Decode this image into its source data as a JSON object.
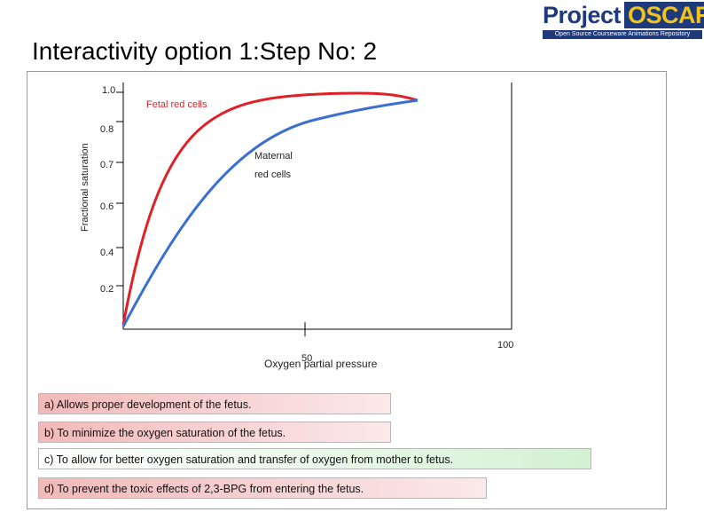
{
  "title": "Interactivity option 1:Step No:  2",
  "logo": {
    "word1": "Project",
    "word2": "OSCAR",
    "tagline": "Open Source Courseware Animations Repository"
  },
  "chart_data": {
    "type": "line",
    "ylabel": "Fractional saturation",
    "xlabel": "Oxygen partial pressure",
    "y_ticks": [
      "1.0",
      "0.8",
      "0.7",
      "0.6",
      "0.4",
      "0.2"
    ],
    "x_ticks": [
      "50",
      "100"
    ],
    "series": [
      {
        "name": "Fetal red cells",
        "color": "#e01f26"
      },
      {
        "name": "Maternal red cells",
        "color": "#3b6fd1"
      }
    ],
    "annotations": {
      "fetal": "Fetal red cells",
      "maternal_line1": "Maternal",
      "maternal_line2": "red cells"
    }
  },
  "options": [
    {
      "text": "a) Allows proper development of the fetus.",
      "color": "#f2b9b9"
    },
    {
      "text": "b) To minimize the oxygen saturation of the fetus.",
      "color": "#f2b9b9"
    },
    {
      "text": "c) To allow for better oxygen saturation and transfer of oxygen from mother to fetus.",
      "color": "#d4f1d4"
    },
    {
      "text": "d) To prevent the toxic effects of 2,3-BPG from entering the fetus.",
      "color": "#f2b9b9"
    }
  ]
}
